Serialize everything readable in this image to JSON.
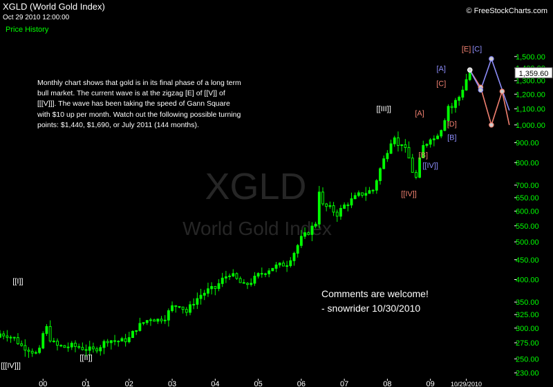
{
  "header": {
    "title": "XGLD (World Gold Index)",
    "datetime": "Oct 29 2010 12:00:00",
    "price_history": "Price History",
    "brand": "© FreeStockCharts.com"
  },
  "watermark": {
    "symbol": "XGLD",
    "name": "World Gold Index"
  },
  "commentary": "Monthly chart shows that gold is in its final phase of a long term bull market.  The current wave is at the zigzag [E] of [[V]] of [[[V]]].  The wave has been taking the speed of Gann Square with $10 up per month.  Watch out the following possible turning points: $1,440, $1,690, or July 2011 (144 months).",
  "comments": {
    "line1": "Comments are welcome!",
    "line2": "- snowrider  10/30/2010"
  },
  "colors": {
    "background": "#000000",
    "up": "#00ff00",
    "down": "#00cc00",
    "salmon": "#f08070",
    "blue": "#8c8cf8",
    "last_price_bg": "#ffffff"
  },
  "chart_data": {
    "type": "candlestick",
    "title": "XGLD (World Gold Index)",
    "period": "monthly",
    "scale": "log",
    "ylim": [
      225,
      1640
    ],
    "y_ticks": [
      230,
      250,
      275,
      300,
      325,
      350,
      400,
      450,
      500,
      550,
      600,
      650,
      700,
      800,
      900,
      1000,
      1100,
      1200,
      1300,
      1400,
      1500
    ],
    "y_tick_labels": [
      "230.00",
      "250.00",
      "275.00",
      "300.00",
      "325.00",
      "350.00",
      "400.00",
      "450.00",
      "500.00",
      "550.00",
      "600.00",
      "650.00",
      "700.00",
      "800.00",
      "900.00",
      "1,000.00",
      "1,100.00",
      "1,200.00",
      "1,300.00",
      "1,400.00",
      "1,500.00"
    ],
    "x_ticks": [
      "00",
      "01",
      "02",
      "03",
      "04",
      "05",
      "06",
      "07",
      "08",
      "09",
      "10/29/2010"
    ],
    "x_tick_months": [
      12,
      24,
      36,
      48,
      60,
      72,
      84,
      96,
      108,
      120,
      130
    ],
    "last_price": "1,359.60",
    "close_path": [
      [
        0,
        290
      ],
      [
        2,
        288
      ],
      [
        4,
        282
      ],
      [
        6,
        270
      ],
      [
        8,
        265
      ],
      [
        10,
        258
      ],
      [
        11,
        262
      ],
      [
        12,
        290
      ],
      [
        13,
        300
      ],
      [
        14,
        282
      ],
      [
        15,
        274
      ],
      [
        16,
        270
      ],
      [
        18,
        268
      ],
      [
        20,
        270
      ],
      [
        22,
        268
      ],
      [
        24,
        265
      ],
      [
        26,
        263
      ],
      [
        28,
        270
      ],
      [
        30,
        280
      ],
      [
        32,
        278
      ],
      [
        34,
        278
      ],
      [
        36,
        282
      ],
      [
        38,
        300
      ],
      [
        40,
        310
      ],
      [
        42,
        318
      ],
      [
        44,
        315
      ],
      [
        46,
        320
      ],
      [
        48,
        340
      ],
      [
        50,
        345
      ],
      [
        52,
        330
      ],
      [
        54,
        350
      ],
      [
        56,
        365
      ],
      [
        58,
        375
      ],
      [
        60,
        380
      ],
      [
        62,
        400
      ],
      [
        64,
        415
      ],
      [
        66,
        400
      ],
      [
        68,
        385
      ],
      [
        70,
        395
      ],
      [
        72,
        410
      ],
      [
        74,
        420
      ],
      [
        76,
        430
      ],
      [
        78,
        435
      ],
      [
        80,
        440
      ],
      [
        82,
        470
      ],
      [
        84,
        510
      ],
      [
        86,
        530
      ],
      [
        88,
        560
      ],
      [
        89,
        680
      ],
      [
        90,
        620
      ],
      [
        92,
        610
      ],
      [
        94,
        590
      ],
      [
        96,
        620
      ],
      [
        98,
        640
      ],
      [
        100,
        660
      ],
      [
        102,
        670
      ],
      [
        104,
        680
      ],
      [
        106,
        770
      ],
      [
        108,
        860
      ],
      [
        109,
        910
      ],
      [
        110,
        940
      ],
      [
        111,
        880
      ],
      [
        112,
        900
      ],
      [
        113,
        860
      ],
      [
        114,
        820
      ],
      [
        115,
        760
      ],
      [
        116,
        730
      ],
      [
        117,
        810
      ],
      [
        118,
        880
      ],
      [
        119,
        900
      ],
      [
        120,
        930
      ],
      [
        121,
        920
      ],
      [
        122,
        950
      ],
      [
        123,
        980
      ],
      [
        124,
        1040
      ],
      [
        125,
        1120
      ],
      [
        126,
        1110
      ],
      [
        127,
        1150
      ],
      [
        128,
        1180
      ],
      [
        129,
        1240
      ],
      [
        130,
        1310
      ],
      [
        131,
        1359.6
      ]
    ],
    "projections": [
      {
        "color": "#f08070",
        "points": [
          [
            131,
            1385
          ],
          [
            134,
            1250
          ],
          [
            137,
            1000
          ],
          [
            140,
            1220
          ],
          [
            142,
            1000
          ]
        ]
      },
      {
        "color": "#8c8cf8",
        "points": [
          [
            131,
            1385
          ],
          [
            134,
            1230
          ],
          [
            137,
            1480
          ],
          [
            142,
            1090
          ]
        ]
      }
    ],
    "pivot_points": [
      {
        "m": 131,
        "v": 1385,
        "ring": "#ffffff"
      },
      {
        "m": 134,
        "v": 1250,
        "ring": "#f08070"
      },
      {
        "m": 134,
        "v": 1230,
        "ring": "#8c8cf8"
      },
      {
        "m": 137,
        "v": 1000,
        "ring": "#f08070"
      },
      {
        "m": 137,
        "v": 1480,
        "ring": "#8c8cf8"
      },
      {
        "m": 140,
        "v": 1220,
        "ring": "#f08070"
      }
    ],
    "annotations": [
      {
        "text": "[[I]]",
        "m": 5,
        "v": 390,
        "color": "#ffffff"
      },
      {
        "text": "[[[IV]]]",
        "m": 3,
        "v": 237,
        "color": "#ffffff"
      },
      {
        "text": "[[II]]",
        "m": 24,
        "v": 248,
        "color": "#ffffff"
      },
      {
        "text": "[[III]]",
        "m": 107,
        "v": 1085,
        "color": "#ffffff"
      },
      {
        "text": "[[IV]]",
        "m": 114,
        "v": 655,
        "color": "#f08070"
      },
      {
        "text": "[A]",
        "m": 117,
        "v": 1055,
        "color": "#f08070"
      },
      {
        "text": "[B]",
        "m": 118,
        "v": 825,
        "color": "#f08070"
      },
      {
        "text": "[[IV]]",
        "m": 120,
        "v": 775,
        "color": "#8c8cf8"
      },
      {
        "text": "[C]",
        "m": 123,
        "v": 1260,
        "color": "#f08070"
      },
      {
        "text": "[A]",
        "m": 123,
        "v": 1375,
        "color": "#8c8cf8"
      },
      {
        "text": "[D]",
        "m": 126,
        "v": 990,
        "color": "#f08070"
      },
      {
        "text": "[B]",
        "m": 126,
        "v": 915,
        "color": "#8c8cf8"
      },
      {
        "text": "[E]",
        "m": 130,
        "v": 1545,
        "color": "#f08070"
      },
      {
        "text": "[C]",
        "m": 133,
        "v": 1545,
        "color": "#8c8cf8"
      }
    ]
  }
}
